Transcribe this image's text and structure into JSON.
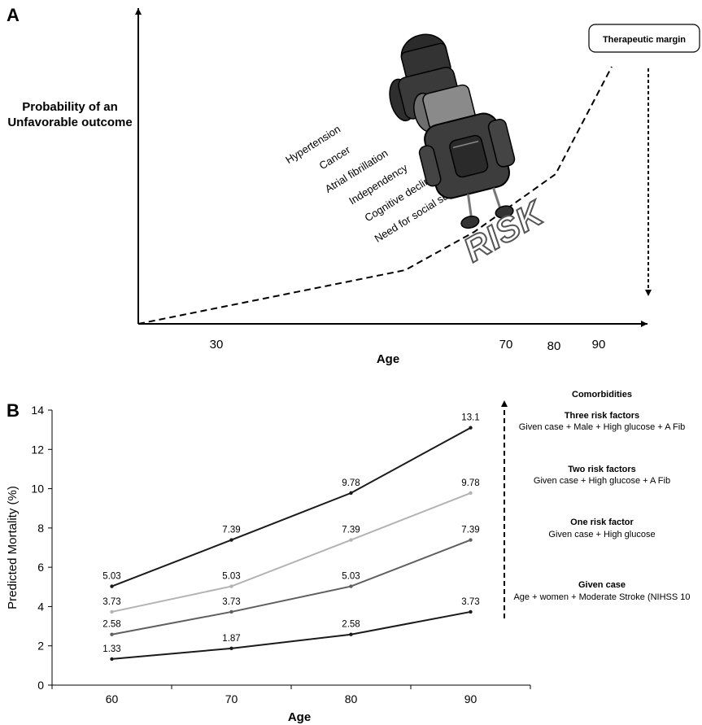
{
  "panel_a": {
    "label": "A",
    "y_axis_title_lines": [
      "Probability of an",
      "Unfavorable outcome"
    ],
    "x_axis_title": "Age",
    "x_ticks": [
      "30",
      "70",
      "80",
      "90"
    ],
    "risk_factors": [
      "Hypertension",
      "Cancer",
      "Atrial fibrillation",
      "Independency",
      "Cognitive decline",
      "Need for social support"
    ],
    "risk_word": "RISK",
    "margin_label": "Therapeutic margin"
  },
  "panel_b": {
    "label": "B",
    "annotations_title": "Comorbidities",
    "annotations": [
      {
        "head": "Three risk factors",
        "sub": "Given case + Male + High glucose + A Fib"
      },
      {
        "head": "Two risk factors",
        "sub": "Given case + High glucose + A Fib"
      },
      {
        "head": "One risk factor",
        "sub": "Given case + High glucose"
      },
      {
        "head": "Given case",
        "sub": "Age + women + Moderate Stroke (NIHSS 10"
      }
    ]
  },
  "chart_data": [
    {
      "type": "line",
      "title": "",
      "xlabel": "Age",
      "ylabel": "Probability of an Unfavorable outcome",
      "x_tick_labels": [
        "30",
        "70",
        "80",
        "90"
      ],
      "series": [
        {
          "style": "dashed",
          "x": [
            18,
            52,
            70,
            88
          ],
          "y": [
            0,
            0.2,
            0.55,
            1.0
          ]
        }
      ]
    },
    {
      "type": "line",
      "title": "",
      "xlabel": "Age",
      "ylabel": "Predicted Mortality (%)",
      "categories": [
        "60",
        "70",
        "80",
        "90"
      ],
      "ylim": [
        0,
        14
      ],
      "yticks": [
        0,
        2,
        4,
        6,
        8,
        10,
        12,
        14
      ],
      "series": [
        {
          "color": "#1a1a1a",
          "values": [
            5.03,
            7.39,
            9.78,
            13.1
          ],
          "labels": [
            "5.03",
            "7.39",
            "9.78",
            "13.1"
          ]
        },
        {
          "color": "#b3b3b3",
          "values": [
            3.73,
            5.03,
            7.39,
            9.78
          ],
          "labels": [
            "3.73",
            "5.03",
            "7.39",
            "9.78"
          ]
        },
        {
          "color": "#5f5f5f",
          "values": [
            2.58,
            3.73,
            5.03,
            7.39
          ],
          "labels": [
            "2.58",
            "3.73",
            "5.03",
            "7.39"
          ]
        },
        {
          "color": "#1a1a1a",
          "values": [
            1.33,
            1.87,
            2.58,
            3.73
          ],
          "labels": [
            "1.33",
            "1.87",
            "2.58",
            "3.73"
          ]
        }
      ]
    }
  ]
}
